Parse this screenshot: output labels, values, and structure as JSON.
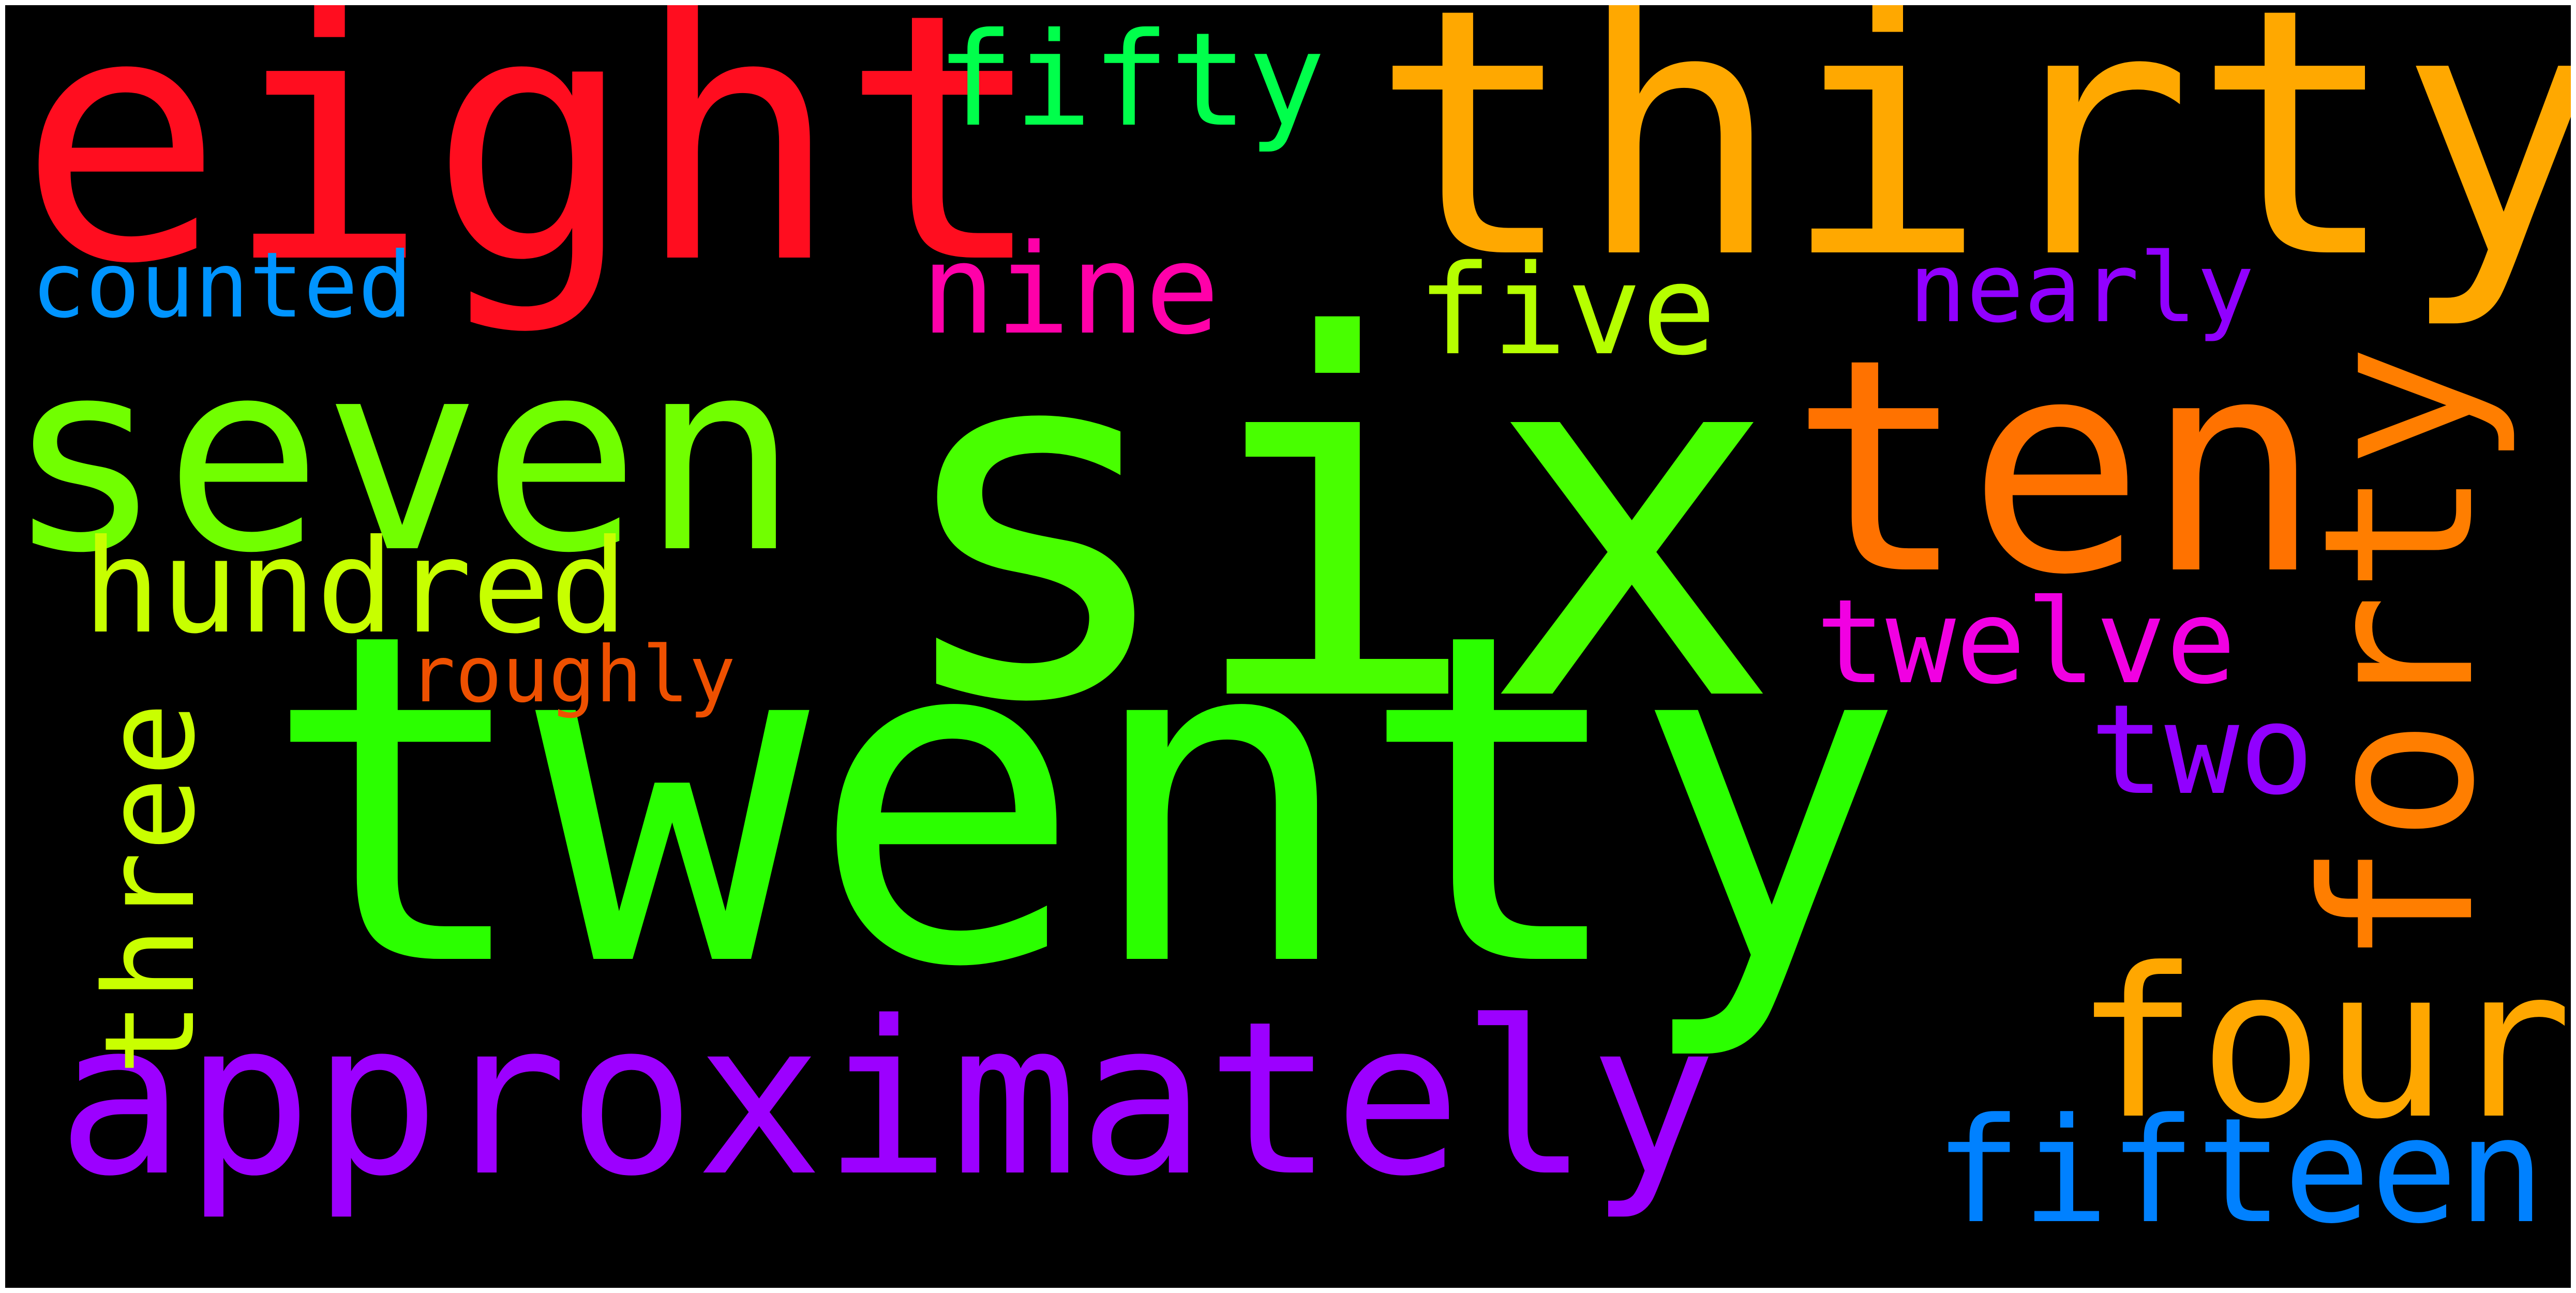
{
  "words": [
    {
      "text": "six",
      "color": "#48ff00"
    },
    {
      "text": "twenty",
      "color": "#2bff00"
    },
    {
      "text": "thirty",
      "color": "#ffa800"
    },
    {
      "text": "eight",
      "color": "#ff0d1f"
    },
    {
      "text": "seven",
      "color": "#71ff00"
    },
    {
      "text": "ten",
      "color": "#ff7200"
    },
    {
      "text": "forty",
      "color": "#ff7e00"
    },
    {
      "text": "approximately",
      "color": "#9c00ff"
    },
    {
      "text": "four",
      "color": "#ffa700"
    },
    {
      "text": "hundred",
      "color": "#c7ff00"
    },
    {
      "text": "fifteen",
      "color": "#0081ff"
    },
    {
      "text": "fifty",
      "color": "#00ff4b"
    },
    {
      "text": "nine",
      "color": "#ff00a9"
    },
    {
      "text": "five",
      "color": "#b6ff00"
    },
    {
      "text": "twelve",
      "color": "#f100e2"
    },
    {
      "text": "three",
      "color": "#c9ff00"
    },
    {
      "text": "two",
      "color": "#9100ff"
    },
    {
      "text": "nearly",
      "color": "#9100ff"
    },
    {
      "text": "counted",
      "color": "#0094ff"
    },
    {
      "text": "roughly",
      "color": "#ee5000"
    }
  ]
}
